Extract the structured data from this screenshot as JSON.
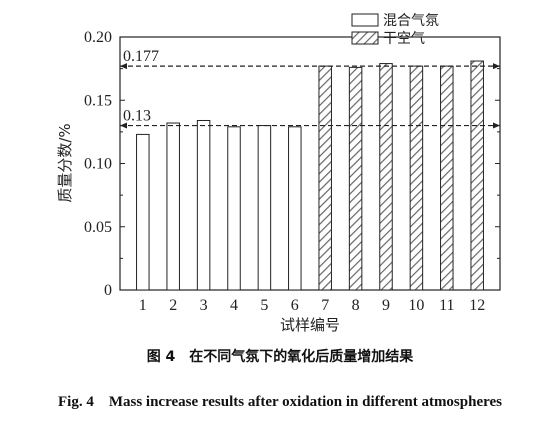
{
  "chart_data": {
    "type": "bar",
    "xlabel": "试样编号",
    "ylabel": "质量分数/%",
    "ylim": [
      0,
      0.2
    ],
    "yticks": [
      "0",
      "0.05",
      "0.10",
      "0.15",
      "0.20"
    ],
    "categories": [
      "1",
      "2",
      "3",
      "4",
      "5",
      "6",
      "7",
      "8",
      "9",
      "10",
      "11",
      "12"
    ],
    "series": [
      {
        "name": "混合气氛",
        "pattern": "open",
        "values": [
          0.123,
          0.132,
          0.134,
          0.129,
          0.13,
          0.129,
          null,
          null,
          null,
          null,
          null,
          null
        ]
      },
      {
        "name": "干空气",
        "pattern": "hatched",
        "values": [
          null,
          null,
          null,
          null,
          null,
          null,
          0.177,
          0.176,
          0.179,
          0.177,
          0.177,
          0.181
        ]
      }
    ],
    "reference_lines": [
      {
        "value": 0.177,
        "label": "0.177"
      },
      {
        "value": 0.13,
        "label": "0.13"
      }
    ],
    "legend": "top-right"
  },
  "caption": {
    "cn": "图 4　在不同气氛下的氧化后质量增加结果",
    "en": "Fig. 4　Mass increase results after oxidation in different atmospheres"
  }
}
